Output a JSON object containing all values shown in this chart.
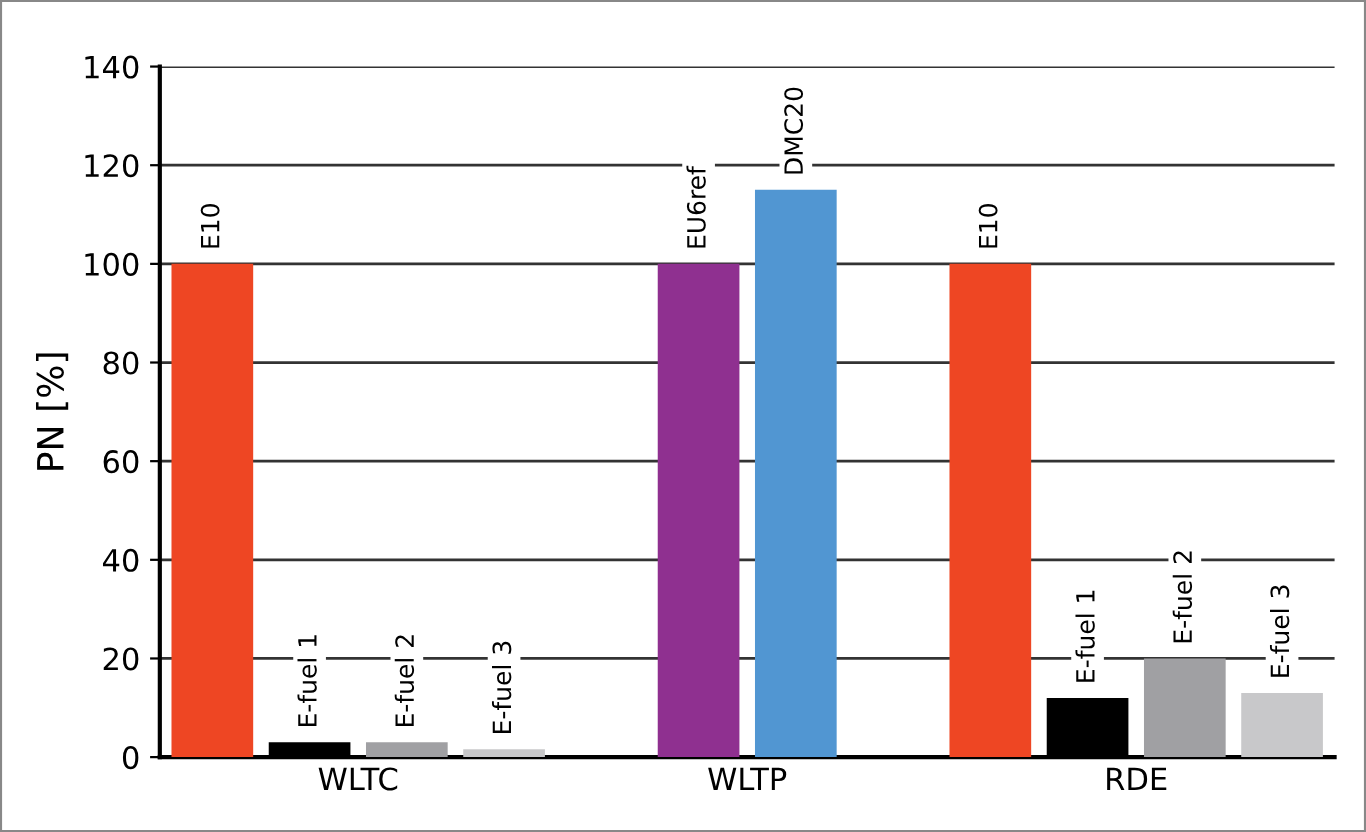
{
  "chart_data": {
    "type": "bar",
    "ylabel": "PN [%]",
    "categories": [
      "WLTC",
      "WLTP",
      "RDE"
    ],
    "series": [
      {
        "name": "E10",
        "color": "#ee4623",
        "values": [
          100,
          null,
          100
        ]
      },
      {
        "name": "EU6ref",
        "color": "#8f3090",
        "values": [
          null,
          100,
          null
        ]
      },
      {
        "name": "DMC20",
        "color": "#5196d2",
        "values": [
          null,
          115,
          null
        ]
      },
      {
        "name": "E-fuel 1",
        "color": "#000000",
        "values": [
          3,
          null,
          12
        ]
      },
      {
        "name": "E-fuel 2",
        "color": "#a0a0a3",
        "values": [
          3,
          null,
          20
        ]
      },
      {
        "name": "E-fuel 3",
        "color": "#c8c8ca",
        "values": [
          1.6,
          null,
          13
        ]
      }
    ],
    "ylim": [
      0,
      140
    ],
    "yticks": [
      0,
      20,
      40,
      60,
      80,
      100,
      120,
      140
    ],
    "grid": "y",
    "legend": false
  }
}
